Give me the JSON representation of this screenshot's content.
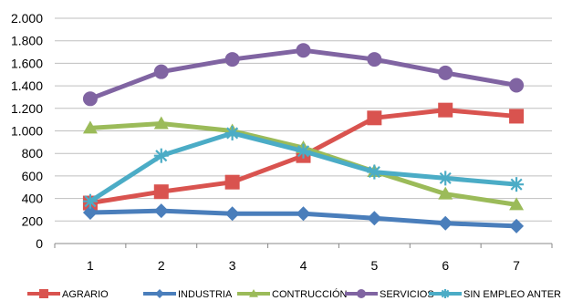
{
  "chart_data": {
    "type": "line",
    "title": "",
    "xlabel": "",
    "ylabel": "",
    "x": [
      1,
      2,
      3,
      4,
      5,
      6,
      7
    ],
    "categories": [
      "1",
      "2",
      "3",
      "4",
      "5",
      "6",
      "7"
    ],
    "ylim": [
      0,
      2000
    ],
    "yticks": [
      0,
      200,
      400,
      600,
      800,
      1000,
      1200,
      1400,
      1600,
      1800,
      2000
    ],
    "ytick_labels": [
      "0",
      "200",
      "400",
      "600",
      "800",
      "1.000",
      "1.200",
      "1.400",
      "1.600",
      "1.800",
      "2.000"
    ],
    "grid": true,
    "legend_position": "bottom",
    "series": [
      {
        "name": "AGRARIO",
        "color": "#d9534f",
        "marker": "square",
        "values": [
          360,
          460,
          545,
          780,
          1115,
          1185,
          1130
        ]
      },
      {
        "name": "INDUSTRIA",
        "color": "#4a7ebb",
        "marker": "diamond",
        "values": [
          275,
          290,
          265,
          265,
          225,
          180,
          155
        ]
      },
      {
        "name": "CONTRUCCIÓN",
        "color": "#9bbb59",
        "marker": "triangle",
        "values": [
          1025,
          1065,
          1000,
          850,
          640,
          440,
          345
        ]
      },
      {
        "name": "SERVICIOS",
        "color": "#8064a2",
        "marker": "circle",
        "values": [
          1285,
          1525,
          1635,
          1715,
          1635,
          1515,
          1405
        ]
      },
      {
        "name": "SIN EMPLEO ANTERIOR",
        "color": "#4bacc6",
        "marker": "asterisk",
        "values": [
          375,
          780,
          980,
          820,
          635,
          580,
          525
        ]
      }
    ]
  }
}
